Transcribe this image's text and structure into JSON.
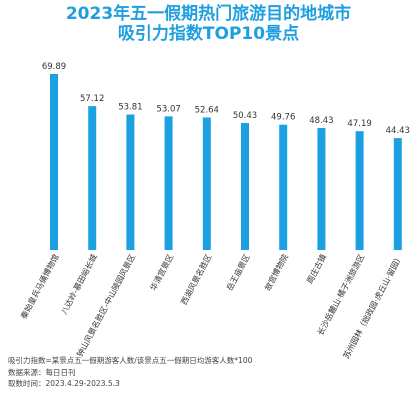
{
  "title_line1": "2023年五一假期热门旅游目的地城市",
  "title_line2": "吸引力指数TOP10景点",
  "colors": {
    "bar": "#1ba1e2",
    "title": "#1f9fe0"
  },
  "chart_data": {
    "type": "bar",
    "title": "2023年五一假期热门旅游目的地城市吸引力指数TOP10景点",
    "xlabel": "",
    "ylabel": "",
    "ylim": [
      0,
      80
    ],
    "grid": false,
    "categories": [
      "秦始皇兵马俑博物馆",
      "八达岭-慕田峪长城",
      "钟山风景名胜区-中山陵园风景区",
      "华清宫景区",
      "西湖风景名胜区",
      "岳王庙景区",
      "故宫博物院",
      "周庄古镇",
      "长沙岳麓山·橘子洲旅游区",
      "苏州园林（拙政园·虎丘山·留园）"
    ],
    "values": [
      69.89,
      57.12,
      53.81,
      53.07,
      52.64,
      50.43,
      49.76,
      48.43,
      47.19,
      44.43
    ],
    "labels": [
      "69.89",
      "57.12",
      "53.81",
      "53.07",
      "52.64",
      "50.43",
      "49.76",
      "48.43",
      "47.19",
      "44.43"
    ]
  },
  "notes": {
    "formula": "吸引力指数=某景点五一假期游客人数/该景点五一假期日均游客人数*100",
    "source": "数据来源：每日日刊",
    "period": "取数时间：2023.4.29-2023.5.3"
  }
}
